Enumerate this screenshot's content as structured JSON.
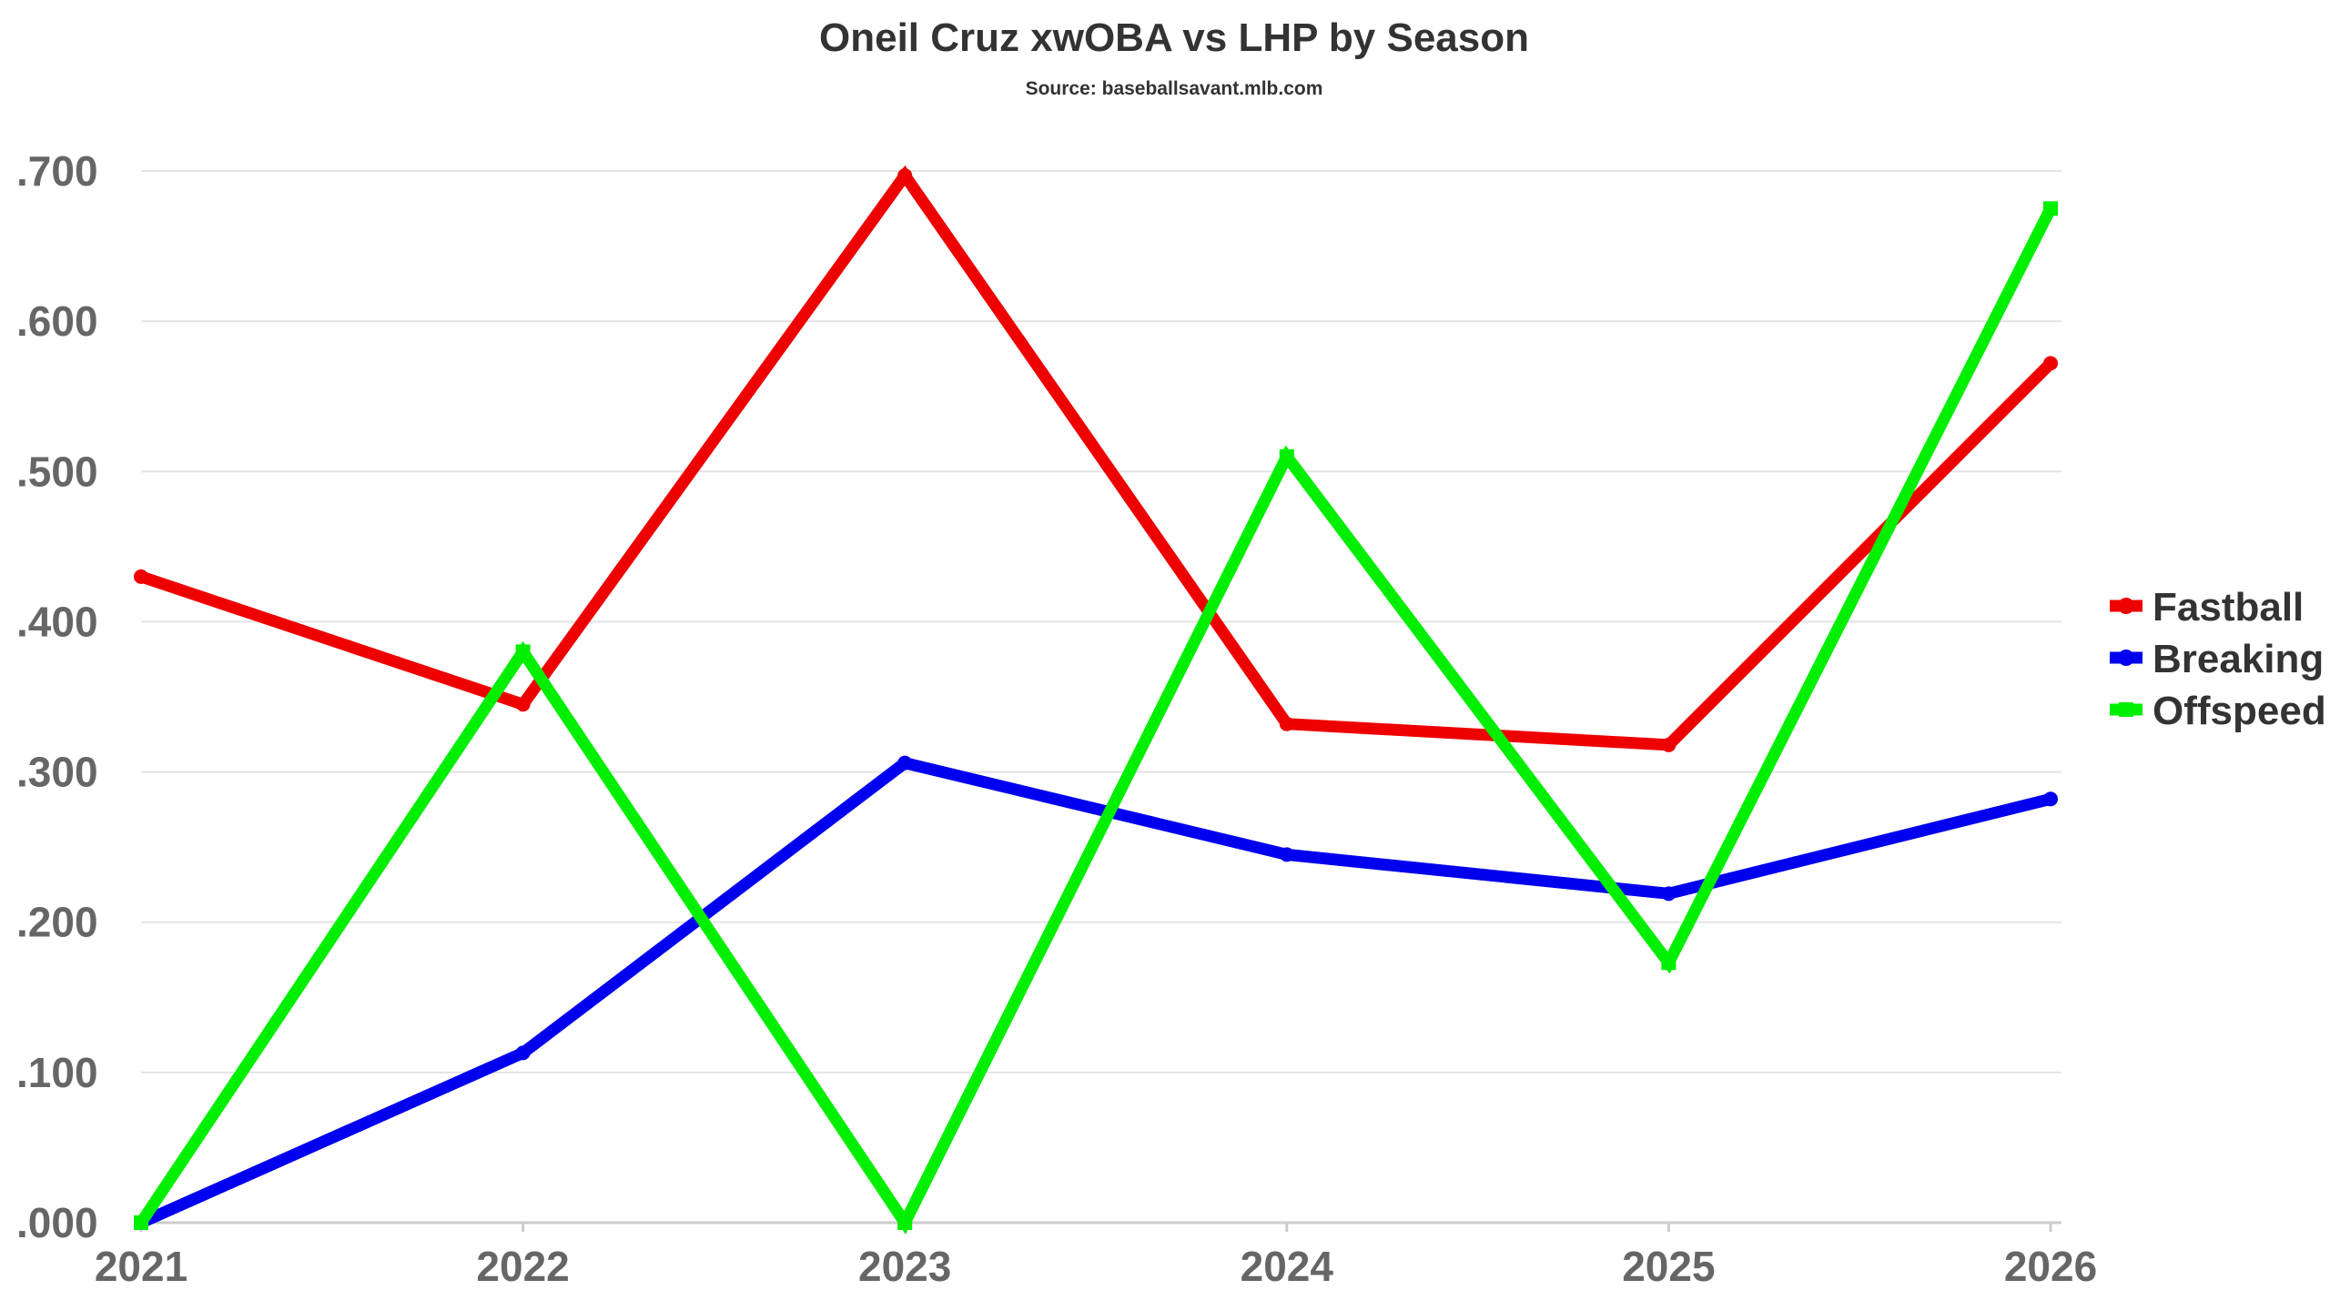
{
  "chart_data": {
    "type": "line",
    "title": "Oneil Cruz xwOBA vs LHP by Season",
    "subtitle": "Source: baseballsavant.mlb.com",
    "xlabel": "",
    "ylabel": "",
    "x": [
      "2021",
      "2022",
      "2023",
      "2024",
      "2025",
      "2026"
    ],
    "ylim": [
      0,
      0.7
    ],
    "yticks": [
      ".000",
      ".100",
      ".200",
      ".300",
      ".400",
      ".500",
      ".600",
      ".700"
    ],
    "grid": "horizontal",
    "legend_position": "right",
    "series": [
      {
        "name": "Fastball",
        "color": "#ee0000",
        "marker": "circle",
        "values": [
          0.43,
          0.345,
          0.697,
          0.332,
          0.318,
          0.572
        ]
      },
      {
        "name": "Breaking",
        "color": "#0000ee",
        "marker": "circle",
        "values": [
          0.0,
          0.113,
          0.306,
          0.245,
          0.219,
          0.282
        ]
      },
      {
        "name": "Offspeed",
        "color": "#00ee00",
        "marker": "square",
        "values": [
          0.0,
          0.38,
          0.0,
          0.51,
          0.173,
          0.675
        ]
      }
    ]
  }
}
